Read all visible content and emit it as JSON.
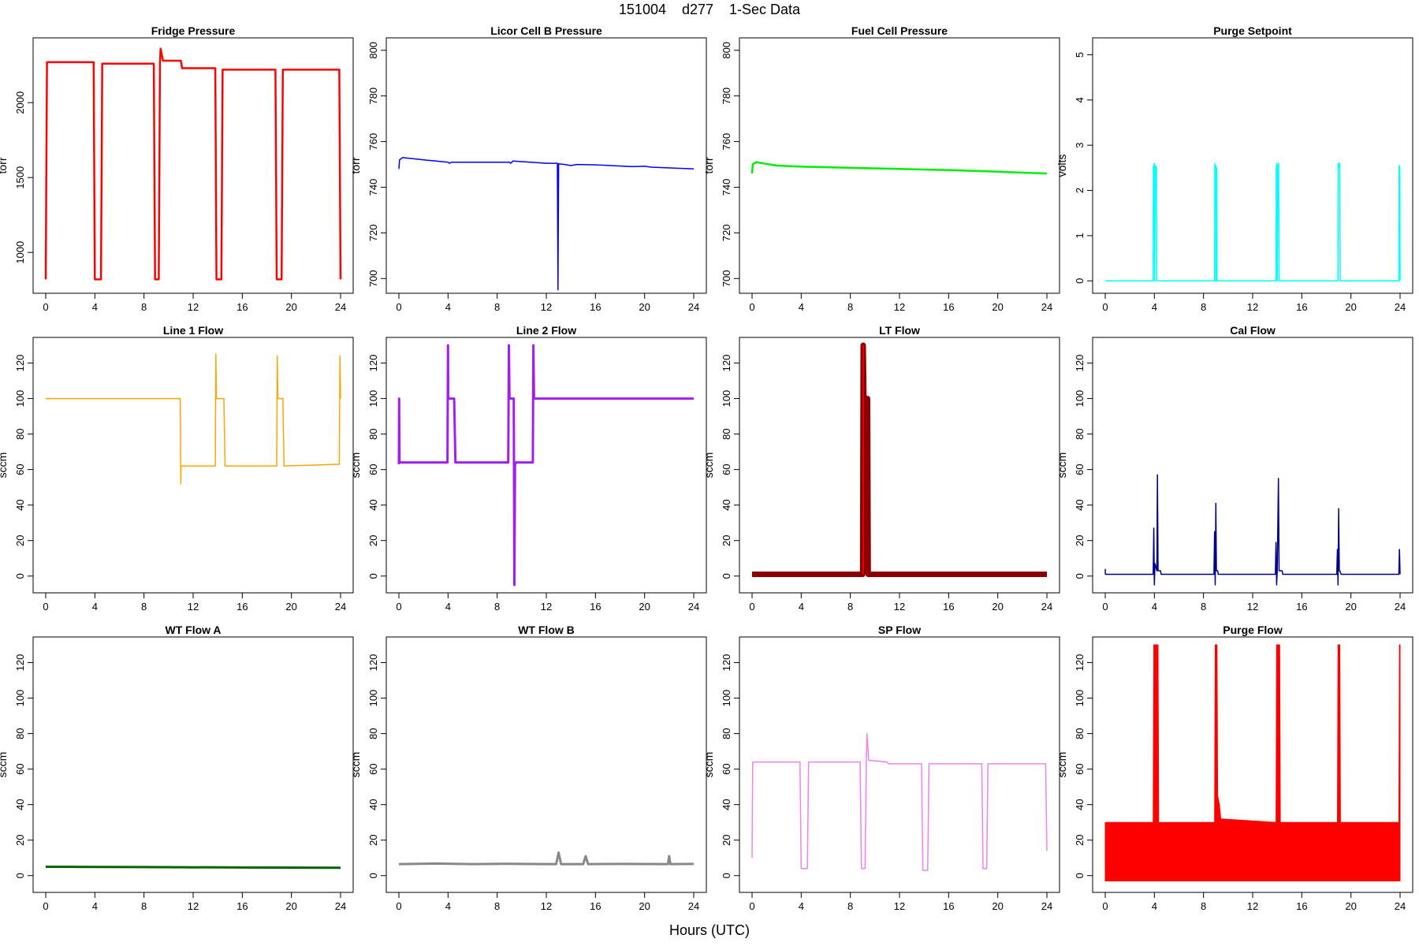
{
  "title": "151004    d277    1-Sec Data",
  "xlabel": "Hours (UTC)",
  "chart_data": [
    {
      "type": "line",
      "title": "Fridge Pressure",
      "ylabel": "torr",
      "color": "#ff0000",
      "xlim": [
        0,
        24
      ],
      "ylim": [
        780,
        2380
      ],
      "yticks": [
        1000,
        1500,
        2000
      ],
      "xticks": [
        0,
        4,
        8,
        12,
        16,
        20,
        24
      ],
      "x": [
        0,
        0.1,
        3.9,
        4.0,
        4.5,
        4.6,
        8.8,
        8.9,
        9.2,
        9.3,
        9.35,
        9.5,
        9.55,
        11.0,
        11.1,
        13.8,
        13.9,
        14.3,
        14.4,
        18.7,
        18.8,
        19.2,
        19.3,
        23.9,
        24.0
      ],
      "y": [
        820,
        2270,
        2270,
        820,
        820,
        2260,
        2260,
        820,
        820,
        2260,
        2360,
        2300,
        2280,
        2280,
        2230,
        2230,
        820,
        820,
        2220,
        2220,
        820,
        820,
        2220,
        2220,
        820
      ]
    },
    {
      "type": "line",
      "title": "Licor Cell B Pressure",
      "ylabel": "torr",
      "color": "#0000ff",
      "xlim": [
        0,
        24
      ],
      "ylim": [
        697,
        802
      ],
      "yticks": [
        700,
        720,
        740,
        760,
        780,
        800
      ],
      "xticks": [
        0,
        4,
        8,
        12,
        16,
        20,
        24
      ],
      "x": [
        0,
        0.05,
        0.3,
        2,
        4,
        4.1,
        4.3,
        9,
        9.1,
        9.3,
        12,
        12.9,
        12.95,
        13,
        13.5,
        14,
        14.5,
        16,
        19,
        20,
        20.5,
        24
      ],
      "y": [
        748,
        752,
        753,
        752,
        751,
        750.5,
        751,
        751,
        750.5,
        751.5,
        750.5,
        750.5,
        695,
        750.3,
        750,
        749.5,
        750,
        749.8,
        749,
        749.2,
        748.8,
        748
      ]
    },
    {
      "type": "line",
      "title": "Fuel Cell Pressure",
      "ylabel": "torr",
      "color": "#00ee00",
      "xlim": [
        0,
        24
      ],
      "ylim": [
        697,
        802
      ],
      "yticks": [
        700,
        720,
        740,
        760,
        780,
        800
      ],
      "xticks": [
        0,
        4,
        8,
        12,
        16,
        20,
        24
      ],
      "x": [
        0,
        0.05,
        0.3,
        2,
        4,
        8,
        12,
        16,
        20,
        24
      ],
      "y": [
        746,
        750,
        751,
        749.5,
        749,
        748.5,
        748,
        747.5,
        746.8,
        746
      ]
    },
    {
      "type": "line",
      "title": "Purge Setpoint",
      "ylabel": "volts",
      "color": "#00ffff",
      "xlim": [
        0,
        24
      ],
      "ylim": [
        -0.1,
        5.2
      ],
      "yticks": [
        0,
        1,
        2,
        3,
        4,
        5
      ],
      "xticks": [
        0,
        4,
        8,
        12,
        16,
        20,
        24
      ],
      "x": [
        0,
        3.9,
        3.92,
        4.0,
        4.02,
        4.08,
        4.1,
        4.18,
        4.2,
        4.25,
        8.9,
        8.92,
        8.95,
        9.0,
        9.02,
        9.08,
        9.1,
        13.9,
        13.92,
        13.98,
        14.0,
        14.05,
        14.08,
        14.12,
        14.15,
        18.95,
        18.97,
        19.02,
        19.05,
        19.1,
        19.12,
        23.9,
        23.92,
        23.98,
        24.0
      ],
      "y": [
        0,
        0,
        2.5,
        2.6,
        0,
        2.5,
        2.55,
        2.5,
        0,
        0,
        0,
        2.6,
        2.4,
        2.55,
        0,
        2.5,
        0,
        0,
        2.5,
        2.6,
        0,
        2.55,
        2.5,
        2.6,
        0,
        0,
        2.6,
        2.5,
        2.55,
        2.6,
        0,
        0,
        2.55,
        2.5,
        0
      ]
    },
    {
      "type": "line",
      "title": "Line 1 Flow",
      "ylabel": "sccm",
      "color": "#ffa500",
      "xlim": [
        0,
        24
      ],
      "ylim": [
        -5,
        130
      ],
      "yticks": [
        0,
        20,
        40,
        60,
        80,
        100,
        120
      ],
      "xticks": [
        0,
        4,
        8,
        12,
        16,
        20,
        24
      ],
      "x": [
        0,
        10.95,
        11.0,
        11.02,
        11.1,
        13.8,
        13.85,
        13.9,
        14.0,
        14.5,
        14.6,
        18.8,
        18.85,
        18.9,
        19.0,
        19.3,
        19.4,
        23.9,
        23.95,
        24.0
      ],
      "y": [
        100,
        100,
        52,
        62,
        62,
        62,
        125,
        100,
        100,
        100,
        62,
        62,
        124,
        100,
        100,
        100,
        62,
        63,
        124,
        100
      ]
    },
    {
      "type": "line",
      "title": "Line 2 Flow",
      "ylabel": "sccm",
      "color": "#a020f0",
      "xlim": [
        0,
        24
      ],
      "ylim": [
        -5,
        130
      ],
      "yticks": [
        0,
        20,
        40,
        60,
        80,
        100,
        120
      ],
      "xticks": [
        0,
        4,
        8,
        12,
        16,
        20,
        24
      ],
      "x": [
        0,
        0.02,
        0.05,
        3.95,
        4.0,
        4.02,
        4.5,
        4.6,
        8.9,
        8.95,
        9.0,
        9.35,
        9.4,
        9.45,
        9.5,
        10.9,
        10.95,
        11.0,
        24
      ],
      "y": [
        63,
        100,
        64,
        64,
        130,
        100,
        100,
        64,
        64,
        130,
        100,
        100,
        -5,
        62,
        64,
        64,
        130,
        100,
        100
      ]
    },
    {
      "type": "line",
      "title": "LT Flow",
      "ylabel": "sccm",
      "color": "#8b0000",
      "spike_color": "#ff0000",
      "xlim": [
        0,
        24
      ],
      "ylim": [
        -5,
        130
      ],
      "yticks": [
        0,
        20,
        40,
        60,
        80,
        100,
        120
      ],
      "xticks": [
        0,
        4,
        8,
        12,
        16,
        20,
        24
      ],
      "x": [
        0,
        9.0,
        9.05,
        9.1,
        9.4,
        9.45,
        24
      ],
      "y": [
        1,
        1,
        130,
        100,
        100,
        1,
        1
      ]
    },
    {
      "type": "line",
      "title": "Cal Flow",
      "ylabel": "sccm",
      "color": "#00008b",
      "xlim": [
        0,
        24
      ],
      "ylim": [
        -5,
        130
      ],
      "yticks": [
        0,
        20,
        40,
        60,
        80,
        100,
        120
      ],
      "xticks": [
        0,
        4,
        8,
        12,
        16,
        20,
        24
      ],
      "x": [
        0,
        0.01,
        0.05,
        3.9,
        3.95,
        4.0,
        4.05,
        4.2,
        4.25,
        4.3,
        4.5,
        4.55,
        8.85,
        8.9,
        8.95,
        9.0,
        9.05,
        9.15,
        9.2,
        13.85,
        13.9,
        13.95,
        14.0,
        14.1,
        14.15,
        14.2,
        14.4,
        14.45,
        18.85,
        18.9,
        18.95,
        19.0,
        19.05,
        19.1,
        19.2,
        23.9,
        23.95,
        24.0
      ],
      "y": [
        4,
        1,
        1,
        1,
        27,
        -5,
        7,
        3,
        57,
        3,
        3,
        1,
        1,
        25,
        -5,
        41,
        3,
        3,
        1,
        1,
        19,
        -5,
        3,
        55,
        3,
        3,
        3,
        1,
        1,
        15,
        -5,
        38,
        3,
        3,
        1,
        1,
        15,
        1
      ]
    },
    {
      "type": "line",
      "title": "WT Flow A",
      "ylabel": "sccm",
      "color": "#006400",
      "xlim": [
        0,
        24
      ],
      "ylim": [
        -5,
        130
      ],
      "yticks": [
        0,
        20,
        40,
        60,
        80,
        100,
        120
      ],
      "xticks": [
        0,
        4,
        8,
        12,
        16,
        20,
        24
      ],
      "x": [
        0,
        8,
        16,
        24
      ],
      "y": [
        5,
        4.8,
        4.6,
        4.4
      ]
    },
    {
      "type": "line",
      "title": "WT Flow B",
      "ylabel": "sccm",
      "color": "#888888",
      "xlim": [
        0,
        24
      ],
      "ylim": [
        -5,
        130
      ],
      "yticks": [
        0,
        20,
        40,
        60,
        80,
        100,
        120
      ],
      "xticks": [
        0,
        4,
        8,
        12,
        16,
        20,
        24
      ],
      "x": [
        0,
        3,
        6,
        9,
        12,
        12.8,
        13,
        13.2,
        15,
        15.2,
        15.4,
        18,
        21.9,
        22,
        22.1,
        24
      ],
      "y": [
        6.5,
        6.8,
        6.5,
        6.7,
        6.5,
        6.5,
        13,
        6.5,
        6.5,
        11,
        6.5,
        6.6,
        6.5,
        11,
        6.5,
        6.6
      ]
    },
    {
      "type": "line",
      "title": "SP Flow",
      "ylabel": "sccm",
      "color": "#ee82ee",
      "xlim": [
        0,
        24
      ],
      "ylim": [
        -5,
        130
      ],
      "yticks": [
        0,
        20,
        40,
        60,
        80,
        100,
        120
      ],
      "xticks": [
        0,
        4,
        8,
        12,
        16,
        20,
        24
      ],
      "x": [
        0,
        0.05,
        3.9,
        4.0,
        4.5,
        4.6,
        8.8,
        8.9,
        9.2,
        9.3,
        9.35,
        9.5,
        11.0,
        11.1,
        13.8,
        13.9,
        14.3,
        14.4,
        18.7,
        18.8,
        19.1,
        19.2,
        23.9,
        24.0
      ],
      "y": [
        10,
        64,
        64,
        4,
        4,
        64,
        64,
        4,
        4,
        64,
        80,
        65,
        64,
        63,
        63,
        3,
        3,
        63,
        63,
        4,
        4,
        63,
        63,
        14
      ]
    },
    {
      "type": "area",
      "title": "Purge Flow",
      "ylabel": "sccm",
      "color": "#ff0000",
      "xlim": [
        0,
        24
      ],
      "ylim": [
        -5,
        130
      ],
      "yticks": [
        0,
        20,
        40,
        60,
        80,
        100,
        120
      ],
      "xticks": [
        0,
        4,
        8,
        12,
        16,
        20,
        24
      ],
      "x": [
        0,
        3.9,
        3.95,
        4.3,
        4.35,
        8.9,
        8.95,
        9.1,
        9.15,
        9.3,
        9.4,
        13.9,
        13.95,
        14.2,
        14.25,
        18.9,
        18.95,
        19.1,
        19.15,
        23.9,
        23.95,
        24.0
      ],
      "y": [
        30,
        30,
        130,
        130,
        30,
        30,
        130,
        130,
        45,
        40,
        32,
        30,
        130,
        130,
        30,
        30,
        130,
        130,
        30,
        30,
        130,
        130
      ],
      "baseline": -3
    }
  ]
}
